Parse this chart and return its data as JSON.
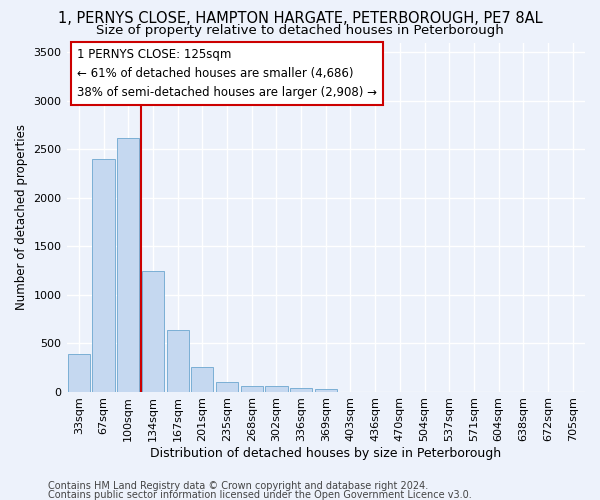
{
  "title1": "1, PERNYS CLOSE, HAMPTON HARGATE, PETERBOROUGH, PE7 8AL",
  "title2": "Size of property relative to detached houses in Peterborough",
  "xlabel": "Distribution of detached houses by size in Peterborough",
  "ylabel": "Number of detached properties",
  "categories": [
    "33sqm",
    "67sqm",
    "100sqm",
    "134sqm",
    "167sqm",
    "201sqm",
    "235sqm",
    "268sqm",
    "302sqm",
    "336sqm",
    "369sqm",
    "403sqm",
    "436sqm",
    "470sqm",
    "504sqm",
    "537sqm",
    "571sqm",
    "604sqm",
    "638sqm",
    "672sqm",
    "705sqm"
  ],
  "values": [
    390,
    2400,
    2610,
    1240,
    640,
    255,
    100,
    60,
    55,
    40,
    30,
    0,
    0,
    0,
    0,
    0,
    0,
    0,
    0,
    0,
    0
  ],
  "bar_color": "#c5d8f0",
  "bar_edge_color": "#7bafd4",
  "vline_color": "#cc0000",
  "vline_x": 2.5,
  "annotation_line1": "1 PERNYS CLOSE: 125sqm",
  "annotation_line2": "← 61% of detached houses are smaller (4,686)",
  "annotation_line3": "38% of semi-detached houses are larger (2,908) →",
  "annotation_box_color": "#ffffff",
  "annotation_box_edge": "#cc0000",
  "ylim": [
    0,
    3600
  ],
  "yticks": [
    0,
    500,
    1000,
    1500,
    2000,
    2500,
    3000,
    3500
  ],
  "footer1": "Contains HM Land Registry data © Crown copyright and database right 2024.",
  "footer2": "Contains public sector information licensed under the Open Government Licence v3.0.",
  "bg_color": "#edf2fb",
  "grid_color": "#ffffff",
  "title1_fontsize": 10.5,
  "title2_fontsize": 9.5,
  "xlabel_fontsize": 9,
  "ylabel_fontsize": 8.5,
  "tick_fontsize": 8,
  "footer_fontsize": 7
}
